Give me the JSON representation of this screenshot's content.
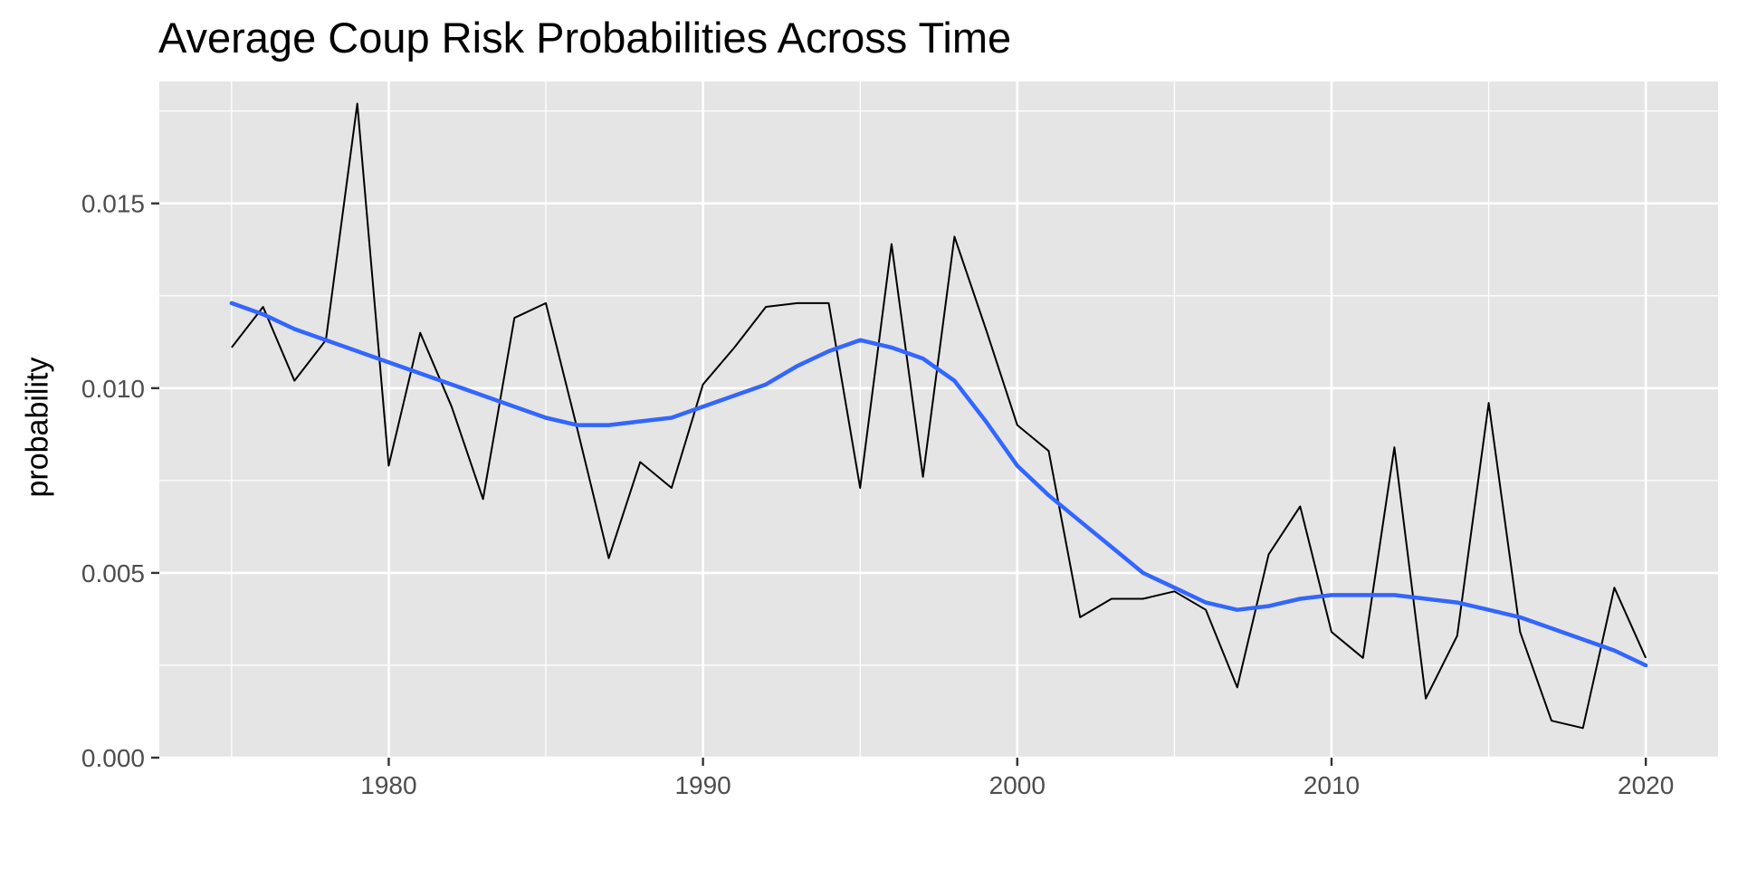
{
  "chart_data": {
    "type": "line",
    "title": "Average Coup Risk Probabilities Across Time",
    "xlabel": "",
    "ylabel": "probability",
    "xlim": [
      1972.7,
      2022.3
    ],
    "ylim": [
      0,
      0.0183
    ],
    "x_ticks": [
      1980,
      1990,
      2000,
      2010,
      2020
    ],
    "y_ticks": [
      0.0,
      0.005,
      0.01,
      0.015
    ],
    "y_tick_labels": [
      "0.000",
      "0.005",
      "0.010",
      "0.015"
    ],
    "grid": true,
    "legend": "none",
    "colors": {
      "panel": "#e5e5e5",
      "grid": "#ffffff",
      "raw_line": "#000000",
      "smooth_line": "#3366ff",
      "tick_text": "#4d4d4d"
    },
    "series": [
      {
        "type": "line",
        "x": [
          1975,
          1976,
          1977,
          1978,
          1979,
          1980,
          1981,
          1982,
          1983,
          1984,
          1985,
          1986,
          1987,
          1988,
          1989,
          1990,
          1991,
          1992,
          1993,
          1994,
          1995,
          1996,
          1997,
          1998,
          1999,
          2000,
          2001,
          2002,
          2003,
          2004,
          2005,
          2006,
          2007,
          2008,
          2009,
          2010,
          2011,
          2012,
          2013,
          2014,
          2015,
          2016,
          2017,
          2018,
          2019,
          2020
        ],
        "values": [
          0.0111,
          0.0122,
          0.0102,
          0.0113,
          0.0177,
          0.0079,
          0.0115,
          0.0095,
          0.007,
          0.0119,
          0.0123,
          0.0089,
          0.0054,
          0.008,
          0.0073,
          0.0101,
          0.0111,
          0.0122,
          0.0123,
          0.0123,
          0.0073,
          0.0139,
          0.0076,
          0.0141,
          0.0116,
          0.009,
          0.0083,
          0.0038,
          0.0043,
          0.0043,
          0.0045,
          0.004,
          0.0019,
          0.0055,
          0.0068,
          0.0034,
          0.0027,
          0.0084,
          0.0016,
          0.0033,
          0.0096,
          0.0034,
          0.001,
          0.0008,
          0.0046,
          0.0027
        ]
      },
      {
        "type": "smooth",
        "x": [
          1975,
          1976,
          1977,
          1978,
          1979,
          1980,
          1981,
          1982,
          1983,
          1984,
          1985,
          1986,
          1987,
          1988,
          1989,
          1990,
          1991,
          1992,
          1993,
          1994,
          1995,
          1996,
          1997,
          1998,
          1999,
          2000,
          2001,
          2002,
          2003,
          2004,
          2005,
          2006,
          2007,
          2008,
          2009,
          2010,
          2011,
          2012,
          2013,
          2014,
          2015,
          2016,
          2017,
          2018,
          2019,
          2020
        ],
        "values": [
          0.0123,
          0.012,
          0.0116,
          0.0113,
          0.011,
          0.0107,
          0.0104,
          0.0101,
          0.0098,
          0.0095,
          0.0092,
          0.009,
          0.009,
          0.0091,
          0.0092,
          0.0095,
          0.0098,
          0.0101,
          0.0106,
          0.011,
          0.0113,
          0.0111,
          0.0108,
          0.0102,
          0.0091,
          0.0079,
          0.0071,
          0.0064,
          0.0057,
          0.005,
          0.0046,
          0.0042,
          0.004,
          0.0041,
          0.0043,
          0.0044,
          0.0044,
          0.0044,
          0.0043,
          0.0042,
          0.004,
          0.0038,
          0.0035,
          0.0032,
          0.0029,
          0.0025
        ]
      }
    ]
  }
}
